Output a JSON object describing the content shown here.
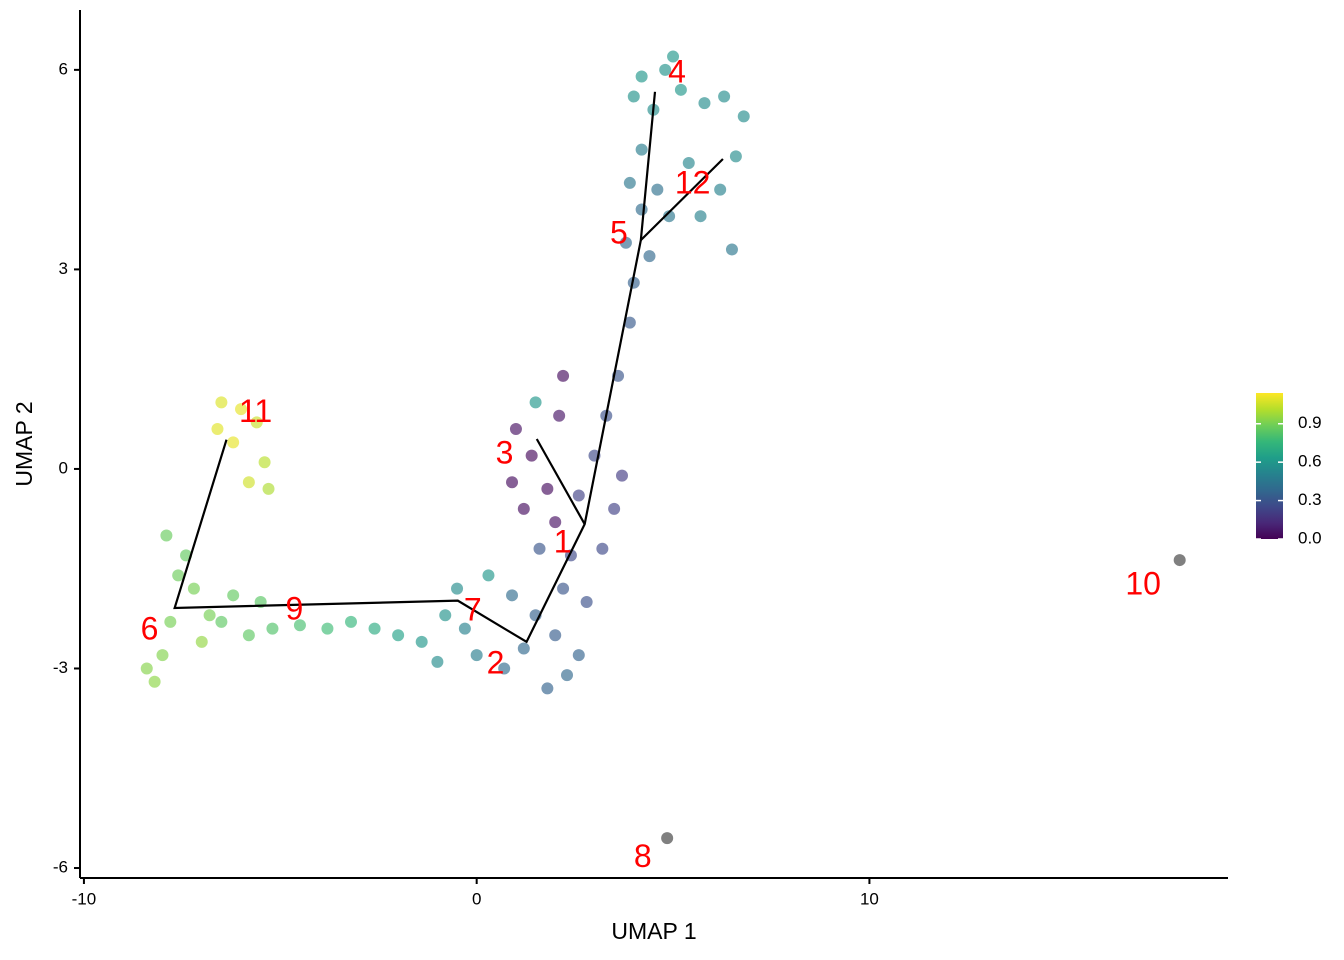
{
  "chart_data": {
    "type": "scatter",
    "x_label": "UMAP 1",
    "y_label": "UMAP 2",
    "xlim": [
      -10.1,
      19.13
    ],
    "ylim": [
      -6.15,
      6.9
    ],
    "xticks": [
      -10,
      0,
      10
    ],
    "yticks": [
      -6,
      -3,
      0,
      3,
      6
    ],
    "grid": false,
    "x": [
      -6.5,
      -6.0,
      -5.6,
      -6.2,
      -5.4,
      -5.8,
      -6.6,
      -5.3,
      -8.4,
      -8.0,
      -7.8,
      -7.6,
      -7.9,
      -7.2,
      -7.0,
      -8.2,
      -7.4,
      -6.8,
      -6.5,
      -5.8,
      -5.2,
      -4.5,
      -3.8,
      -3.2,
      -6.2,
      -5.5,
      -2.6,
      -2.0,
      -1.4,
      -0.8,
      -0.5,
      -1.0,
      -0.3,
      0.3,
      0.0,
      0.7,
      1.2,
      1.8,
      2.3,
      1.5,
      0.9,
      2.0,
      2.6,
      2.2,
      2.8,
      3.2,
      3.5,
      2.6,
      3.0,
      3.3,
      2.4,
      3.7,
      1.6,
      1.0,
      1.4,
      1.8,
      1.2,
      2.1,
      2.2,
      1.5,
      0.9,
      2.0,
      3.6,
      3.9,
      4.0,
      3.8,
      4.2,
      4.6,
      3.9,
      4.4,
      4.9,
      4.2,
      4.2,
      4.8,
      5.2,
      4.5,
      4.0,
      5.0,
      5.8,
      6.3,
      6.8,
      6.6,
      6.2,
      5.7,
      6.5,
      5.4,
      4.85,
      17.9
    ],
    "y": [
      1.0,
      0.9,
      0.7,
      0.4,
      0.1,
      -0.2,
      0.6,
      -0.3,
      -3.0,
      -2.8,
      -2.3,
      -1.6,
      -1.0,
      -1.8,
      -2.6,
      -3.2,
      -1.3,
      -2.2,
      -2.3,
      -2.5,
      -2.4,
      -2.35,
      -2.4,
      -2.3,
      -1.9,
      -2.0,
      -2.4,
      -2.5,
      -2.6,
      -2.2,
      -1.8,
      -2.9,
      -2.4,
      -1.6,
      -2.8,
      -3.0,
      -2.7,
      -3.3,
      -3.1,
      -2.2,
      -1.9,
      -2.5,
      -2.8,
      -1.8,
      -2.0,
      -1.2,
      -0.6,
      -0.4,
      0.2,
      0.8,
      -1.3,
      -0.1,
      -1.2,
      0.6,
      0.2,
      -0.3,
      -0.6,
      0.8,
      1.4,
      1.0,
      -0.2,
      -0.8,
      1.4,
      2.2,
      2.8,
      3.4,
      3.9,
      4.2,
      4.3,
      3.2,
      3.8,
      4.8,
      5.9,
      6.0,
      5.7,
      5.4,
      5.6,
      6.2,
      5.5,
      5.6,
      5.3,
      4.7,
      4.2,
      3.8,
      3.3,
      4.6,
      -5.55,
      -1.37
    ],
    "color_values": [
      1.08,
      1.1,
      1.05,
      1.1,
      1.02,
      1.06,
      1.09,
      1.0,
      0.93,
      0.92,
      0.9,
      0.88,
      0.87,
      0.9,
      0.95,
      0.94,
      0.86,
      0.9,
      0.85,
      0.85,
      0.82,
      0.8,
      0.78,
      0.75,
      0.86,
      0.84,
      0.7,
      0.65,
      0.6,
      0.58,
      0.55,
      0.55,
      0.5,
      0.6,
      0.48,
      0.4,
      0.38,
      0.36,
      0.38,
      0.35,
      0.4,
      0.33,
      0.36,
      0.3,
      0.28,
      0.25,
      0.22,
      0.22,
      0.25,
      0.28,
      0.25,
      0.2,
      0.3,
      0.05,
      0.02,
      0.03,
      0.04,
      0.06,
      0.03,
      0.6,
      0.03,
      0.05,
      0.3,
      0.32,
      0.35,
      0.38,
      0.4,
      0.42,
      0.45,
      0.38,
      0.45,
      0.48,
      0.6,
      0.58,
      0.6,
      0.56,
      0.58,
      0.6,
      0.55,
      0.55,
      0.55,
      0.55,
      0.5,
      0.5,
      0.45,
      0.52,
      null,
      null
    ],
    "colorscale": [
      "#440154",
      "#482878",
      "#3e4989",
      "#31688e",
      "#26828e",
      "#1f9e89",
      "#35b779",
      "#6ece58",
      "#b5de2b",
      "#fde725"
    ],
    "na_color": "#808080",
    "clim": [
      0,
      1.14
    ],
    "colorbar_ticks": [
      {
        "value": 0,
        "label": "0.0"
      },
      0.3,
      0.6,
      0.9
    ],
    "trajectory": [
      {
        "x": [
          -6.37,
          -7.69,
          -0.48,
          1.27,
          2.75,
          4.18,
          4.54
        ],
        "y": [
          0.44,
          -2.09,
          -1.98,
          -2.6,
          -0.83,
          3.44,
          5.67
        ]
      },
      {
        "x": [
          1.53,
          2.75
        ],
        "y": [
          0.45,
          -0.83
        ]
      },
      {
        "x": [
          4.18,
          6.27
        ],
        "y": [
          3.44,
          4.66
        ]
      }
    ],
    "cluster_labels": [
      {
        "text": "4",
        "x": 5.1,
        "y": 5.94
      },
      {
        "text": "12",
        "x": 5.5,
        "y": 4.27
      },
      {
        "text": "5",
        "x": 3.62,
        "y": 3.52
      },
      {
        "text": "11",
        "x": -5.63,
        "y": 0.83
      },
      {
        "text": "3",
        "x": 0.71,
        "y": 0.21
      },
      {
        "text": "1",
        "x": 2.19,
        "y": -1.13
      },
      {
        "text": "7",
        "x": -0.1,
        "y": -2.15
      },
      {
        "text": "9",
        "x": -4.64,
        "y": -2.14
      },
      {
        "text": "6",
        "x": -8.33,
        "y": -2.44
      },
      {
        "text": "2",
        "x": 0.48,
        "y": -2.95
      },
      {
        "text": "10",
        "x": 16.97,
        "y": -1.76
      },
      {
        "text": "8",
        "x": 4.23,
        "y": -5.86
      }
    ],
    "label_color": "#ff0000"
  }
}
